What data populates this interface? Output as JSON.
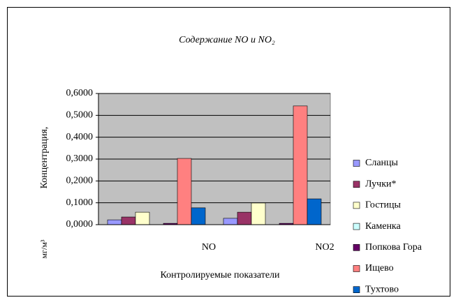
{
  "chart_data": {
    "type": "bar",
    "title": "Содержание NO и NO₂",
    "x_label": "Контролируемые показатели",
    "y_label": [
      "Концентрация,",
      "мг/м³"
    ],
    "categories": [
      "NO",
      "NO2"
    ],
    "series": [
      {
        "name": "Сланцы",
        "color": "#9999ff",
        "values": [
          0.022,
          0.029
        ]
      },
      {
        "name": "Лучки*",
        "color": "#993366",
        "values": [
          0.035,
          0.057
        ]
      },
      {
        "name": "Гостицы",
        "color": "#ffffcc",
        "values": [
          0.057,
          0.099
        ]
      },
      {
        "name": "Каменка",
        "color": "#ccffff",
        "values": [
          0,
          0
        ]
      },
      {
        "name": "Попкова Гора",
        "color": "#660066",
        "values": [
          0.006,
          0.006
        ]
      },
      {
        "name": "Ищево",
        "color": "#ff8080",
        "values": [
          0.303,
          0.543
        ]
      },
      {
        "name": "Тухтово",
        "color": "#0066cc",
        "values": [
          0.077,
          0.118
        ]
      }
    ],
    "ylim": [
      0,
      0.6
    ],
    "yticks": [
      {
        "value": 0,
        "label": "0,0000"
      },
      {
        "value": 0.1,
        "label": "0,1000"
      },
      {
        "value": 0.2,
        "label": "0,2000"
      },
      {
        "value": 0.3,
        "label": "0,3000"
      },
      {
        "value": 0.4,
        "label": "0,4000"
      },
      {
        "value": 0.5,
        "label": "0,5000"
      },
      {
        "value": 0.6,
        "label": "0,6000"
      }
    ],
    "grid": true,
    "legend": "right",
    "plot_background": "#c0c0c0"
  }
}
